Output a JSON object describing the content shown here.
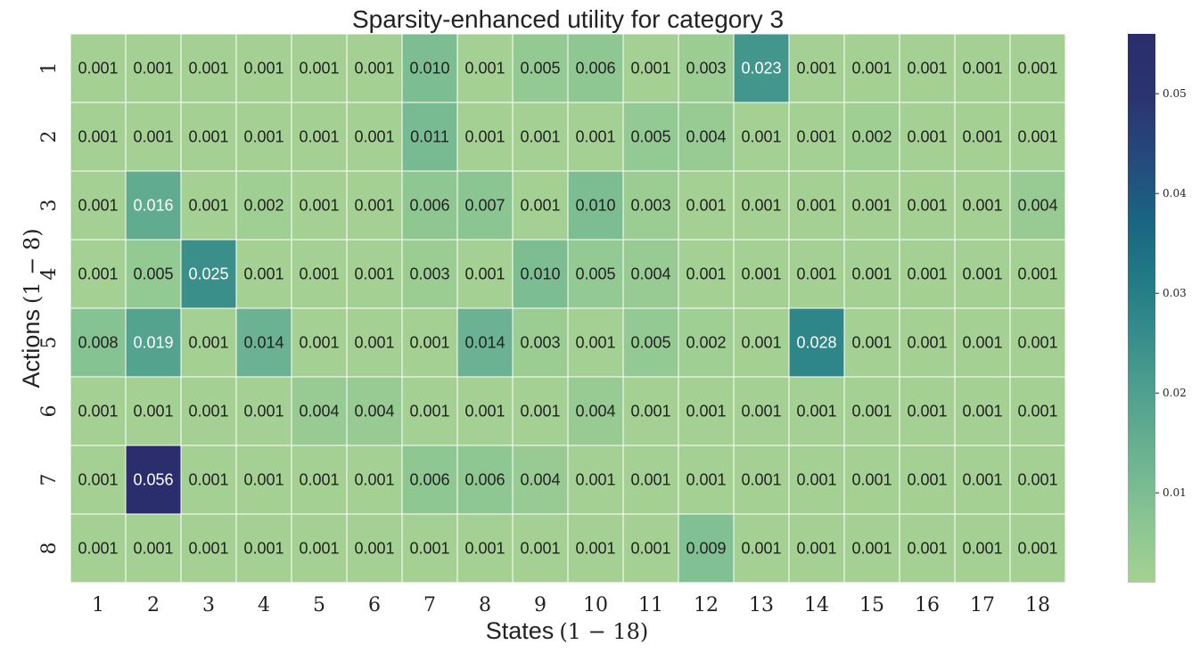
{
  "chart_data": {
    "type": "heatmap",
    "title": "Sparsity-enhanced utility for category 3",
    "xlabel": "States",
    "xlabel_math": "(1 − 18)",
    "ylabel": "Actions",
    "ylabel_math": "(1 − 8)",
    "x_categories": [
      "1",
      "2",
      "3",
      "4",
      "5",
      "6",
      "7",
      "8",
      "9",
      "10",
      "11",
      "12",
      "13",
      "14",
      "15",
      "16",
      "17",
      "18"
    ],
    "y_categories": [
      "1",
      "2",
      "3",
      "4",
      "5",
      "6",
      "7",
      "8"
    ],
    "values": [
      [
        0.001,
        0.001,
        0.001,
        0.001,
        0.001,
        0.001,
        0.01,
        0.001,
        0.005,
        0.006,
        0.001,
        0.003,
        0.023,
        0.001,
        0.001,
        0.001,
        0.001,
        0.001
      ],
      [
        0.001,
        0.001,
        0.001,
        0.001,
        0.001,
        0.001,
        0.011,
        0.001,
        0.001,
        0.001,
        0.005,
        0.004,
        0.001,
        0.001,
        0.002,
        0.001,
        0.001,
        0.001
      ],
      [
        0.001,
        0.016,
        0.001,
        0.002,
        0.001,
        0.001,
        0.006,
        0.007,
        0.001,
        0.01,
        0.003,
        0.001,
        0.001,
        0.001,
        0.001,
        0.001,
        0.001,
        0.004
      ],
      [
        0.001,
        0.005,
        0.025,
        0.001,
        0.001,
        0.001,
        0.003,
        0.001,
        0.01,
        0.005,
        0.004,
        0.001,
        0.001,
        0.001,
        0.001,
        0.001,
        0.001,
        0.001
      ],
      [
        0.008,
        0.019,
        0.001,
        0.014,
        0.001,
        0.001,
        0.001,
        0.014,
        0.003,
        0.001,
        0.005,
        0.002,
        0.001,
        0.028,
        0.001,
        0.001,
        0.001,
        0.001
      ],
      [
        0.001,
        0.001,
        0.001,
        0.001,
        0.004,
        0.004,
        0.001,
        0.001,
        0.001,
        0.004,
        0.001,
        0.001,
        0.001,
        0.001,
        0.001,
        0.001,
        0.001,
        0.001
      ],
      [
        0.001,
        0.056,
        0.001,
        0.001,
        0.001,
        0.001,
        0.006,
        0.006,
        0.004,
        0.001,
        0.001,
        0.001,
        0.001,
        0.001,
        0.001,
        0.001,
        0.001,
        0.001
      ],
      [
        0.001,
        0.001,
        0.001,
        0.001,
        0.001,
        0.001,
        0.001,
        0.001,
        0.001,
        0.001,
        0.001,
        0.009,
        0.001,
        0.001,
        0.001,
        0.001,
        0.001,
        0.001
      ]
    ],
    "colorbar": {
      "range": [
        0.001,
        0.056
      ],
      "ticks": [
        0.01,
        0.02,
        0.03,
        0.04,
        0.05
      ],
      "tick_labels": [
        "0.01",
        "0.02",
        "0.03",
        "0.04",
        "0.05"
      ],
      "colormap": [
        "#a4d193",
        "#8ac592",
        "#6db491",
        "#52a28e",
        "#388e8b",
        "#217a85",
        "#1a6381",
        "#25497c",
        "#2b3371",
        "#2a2e6c"
      ],
      "colormap_name": "crest"
    },
    "grid": true,
    "legend": "colorbar-right"
  }
}
